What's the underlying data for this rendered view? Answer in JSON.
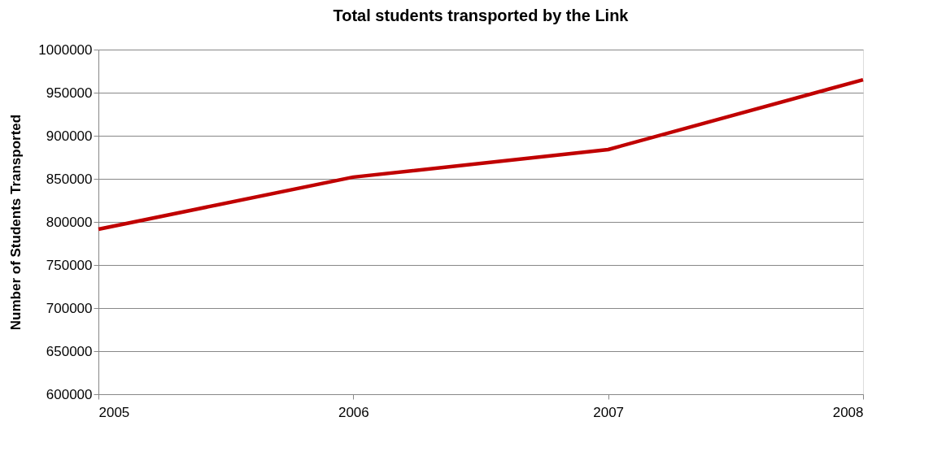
{
  "chart_data": {
    "type": "line",
    "title": "Total students transported by the Link",
    "ylabel": "Number of Students Transported",
    "x": [
      2005,
      2006,
      2007,
      2008
    ],
    "series": [
      {
        "color": "#c00000",
        "values": [
          791500,
          852000,
          884000,
          965000
        ]
      }
    ],
    "xlim": [
      2005,
      2008
    ],
    "xticks": [
      2005,
      2006,
      2007,
      2008
    ],
    "ylim": [
      600000,
      1000000
    ],
    "yticks": [
      600000,
      650000,
      700000,
      750000,
      800000,
      850000,
      900000,
      950000,
      1000000
    ],
    "grid": "y",
    "legend": false,
    "marker": "none",
    "line_style": "solid"
  }
}
